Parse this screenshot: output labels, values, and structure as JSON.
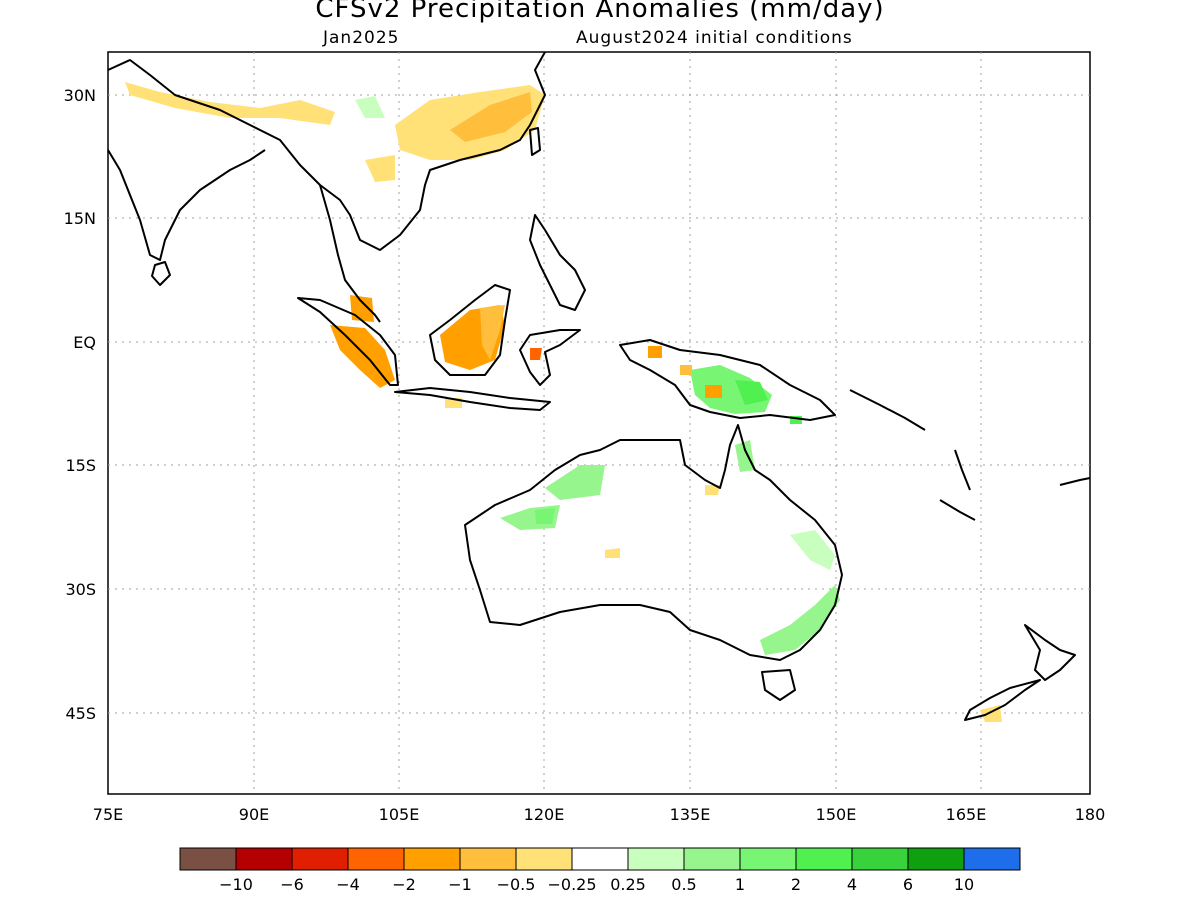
{
  "title": "CFSv2 Precipitation Anomalies (mm/day)",
  "subtitle_left": "Jan2025",
  "subtitle_right": "August2024 initial conditions",
  "x_ticks": [
    "75E",
    "90E",
    "105E",
    "120E",
    "135E",
    "150E",
    "165E",
    "180"
  ],
  "y_ticks": [
    "30N",
    "15N",
    "EQ",
    "15S",
    "30S",
    "45S"
  ],
  "colorbar": {
    "colors": [
      "#7a5044",
      "#b40000",
      "#e01e00",
      "#ff6400",
      "#ffa000",
      "#ffbe3c",
      "#ffe178",
      "#ffffff",
      "#c8ffbe",
      "#96f58c",
      "#78f573",
      "#50f050",
      "#37d23c",
      "#0fa00f",
      "#1e6eeb"
    ],
    "labels": [
      "-10",
      "-6",
      "-4",
      "-2",
      "-1",
      "-0.5",
      "-0.25",
      "0.25",
      "0.5",
      "1",
      "2",
      "4",
      "6",
      "10"
    ]
  }
}
